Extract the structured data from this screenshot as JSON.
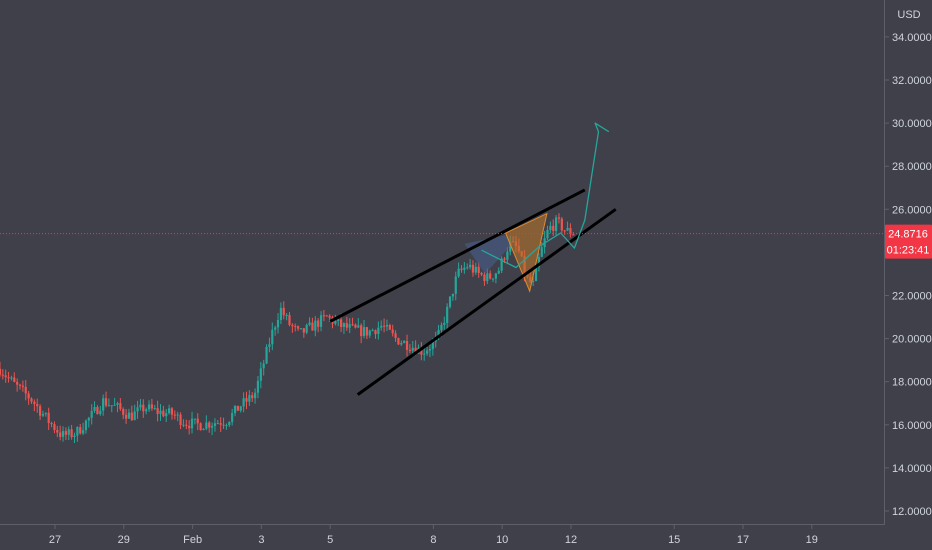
{
  "chart_data": {
    "type": "candlestick",
    "currency_label": "USD",
    "y_ticks": [
      {
        "value": 34,
        "label": "34.0000"
      },
      {
        "value": 32,
        "label": "32.0000"
      },
      {
        "value": 30,
        "label": "30.0000"
      },
      {
        "value": 28,
        "label": "28.0000"
      },
      {
        "value": 26,
        "label": "26.0000"
      },
      {
        "value": 24,
        "label": "24.0000"
      },
      {
        "value": 22,
        "label": "22.0000"
      },
      {
        "value": 20,
        "label": "20.0000"
      },
      {
        "value": 18,
        "label": "18.0000"
      },
      {
        "value": 16,
        "label": "16.0000"
      },
      {
        "value": 14,
        "label": "14.0000"
      },
      {
        "value": 12,
        "label": "12.0000"
      }
    ],
    "x_ticks": [
      {
        "day": 27,
        "label": "27"
      },
      {
        "day": 29,
        "label": "29"
      },
      {
        "day": 31,
        "label": "Feb"
      },
      {
        "day": 33,
        "label": "3"
      },
      {
        "day": 35,
        "label": "5"
      },
      {
        "day": 38,
        "label": "8"
      },
      {
        "day": 40,
        "label": "10"
      },
      {
        "day": 42,
        "label": "12"
      },
      {
        "day": 45,
        "label": "15"
      },
      {
        "day": 47,
        "label": "17"
      },
      {
        "day": 49,
        "label": "19"
      }
    ],
    "current_price": {
      "value": 24.8716,
      "label": "24.8716",
      "countdown": "01:23:41"
    },
    "ohlc_anchors": [
      [
        25.4,
        18.6
      ],
      [
        25.8,
        17.9
      ],
      [
        26.3,
        17.2
      ],
      [
        26.8,
        16.2
      ],
      [
        27.2,
        15.5
      ],
      [
        27.6,
        15.6
      ],
      [
        28.0,
        16.3
      ],
      [
        28.4,
        17.1
      ],
      [
        28.8,
        16.8
      ],
      [
        29.2,
        16.4
      ],
      [
        29.6,
        16.8
      ],
      [
        30.0,
        16.6
      ],
      [
        30.4,
        16.5
      ],
      [
        30.8,
        16.1
      ],
      [
        31.2,
        16.0
      ],
      [
        31.6,
        16.1
      ],
      [
        32.0,
        16.2
      ],
      [
        32.4,
        16.9
      ],
      [
        32.8,
        17.4
      ],
      [
        33.0,
        18.5
      ],
      [
        33.3,
        20.2
      ],
      [
        33.55,
        21.4
      ],
      [
        33.8,
        20.7
      ],
      [
        34.1,
        20.2
      ],
      [
        34.5,
        20.6
      ],
      [
        34.9,
        21.0
      ],
      [
        35.3,
        20.6
      ],
      [
        35.7,
        20.4
      ],
      [
        36.1,
        20.3
      ],
      [
        36.5,
        20.6
      ],
      [
        36.9,
        20.0
      ],
      [
        37.3,
        19.7
      ],
      [
        37.7,
        19.4
      ],
      [
        38.1,
        19.9
      ],
      [
        38.4,
        21.3
      ],
      [
        38.7,
        23.0
      ],
      [
        39.0,
        23.4
      ],
      [
        39.3,
        23.0
      ],
      [
        39.6,
        22.8
      ],
      [
        39.9,
        23.2
      ],
      [
        40.2,
        24.4
      ],
      [
        40.45,
        24.2
      ],
      [
        40.7,
        22.8
      ],
      [
        40.9,
        22.5
      ],
      [
        41.1,
        23.9
      ],
      [
        41.35,
        25.1
      ],
      [
        41.6,
        25.4
      ],
      [
        41.85,
        25.0
      ],
      [
        42.1,
        24.9
      ]
    ],
    "colors": {
      "up": "#26a69a",
      "down": "#ef5350",
      "current_price": "#f23645",
      "trendline": "#000000",
      "projection": "#26a69a",
      "cup_fill": "#4a5f8f",
      "handle_fill": "#b5742a"
    },
    "annotations": {
      "upper_trendline": [
        [
          35.0,
          20.8
        ],
        [
          42.4,
          26.9
        ]
      ],
      "lower_trendline": [
        [
          35.8,
          17.4
        ],
        [
          43.3,
          26.0
        ]
      ],
      "projection_curve": [
        [
          39.4,
          24.1
        ],
        [
          40.4,
          23.3
        ],
        [
          41.1,
          24.3
        ],
        [
          41.7,
          24.9
        ],
        [
          42.1,
          24.2
        ],
        [
          42.4,
          25.5
        ],
        [
          42.8,
          29.6
        ],
        [
          42.7,
          30.0
        ],
        [
          43.1,
          29.6
        ]
      ],
      "cup_region": [
        [
          38.9,
          24.4
        ],
        [
          39.5,
          23.0
        ],
        [
          40.3,
          24.4
        ],
        [
          40.1,
          24.8
        ]
      ],
      "handle_region": [
        [
          40.1,
          24.9
        ],
        [
          40.8,
          22.2
        ],
        [
          41.3,
          25.8
        ]
      ]
    }
  }
}
